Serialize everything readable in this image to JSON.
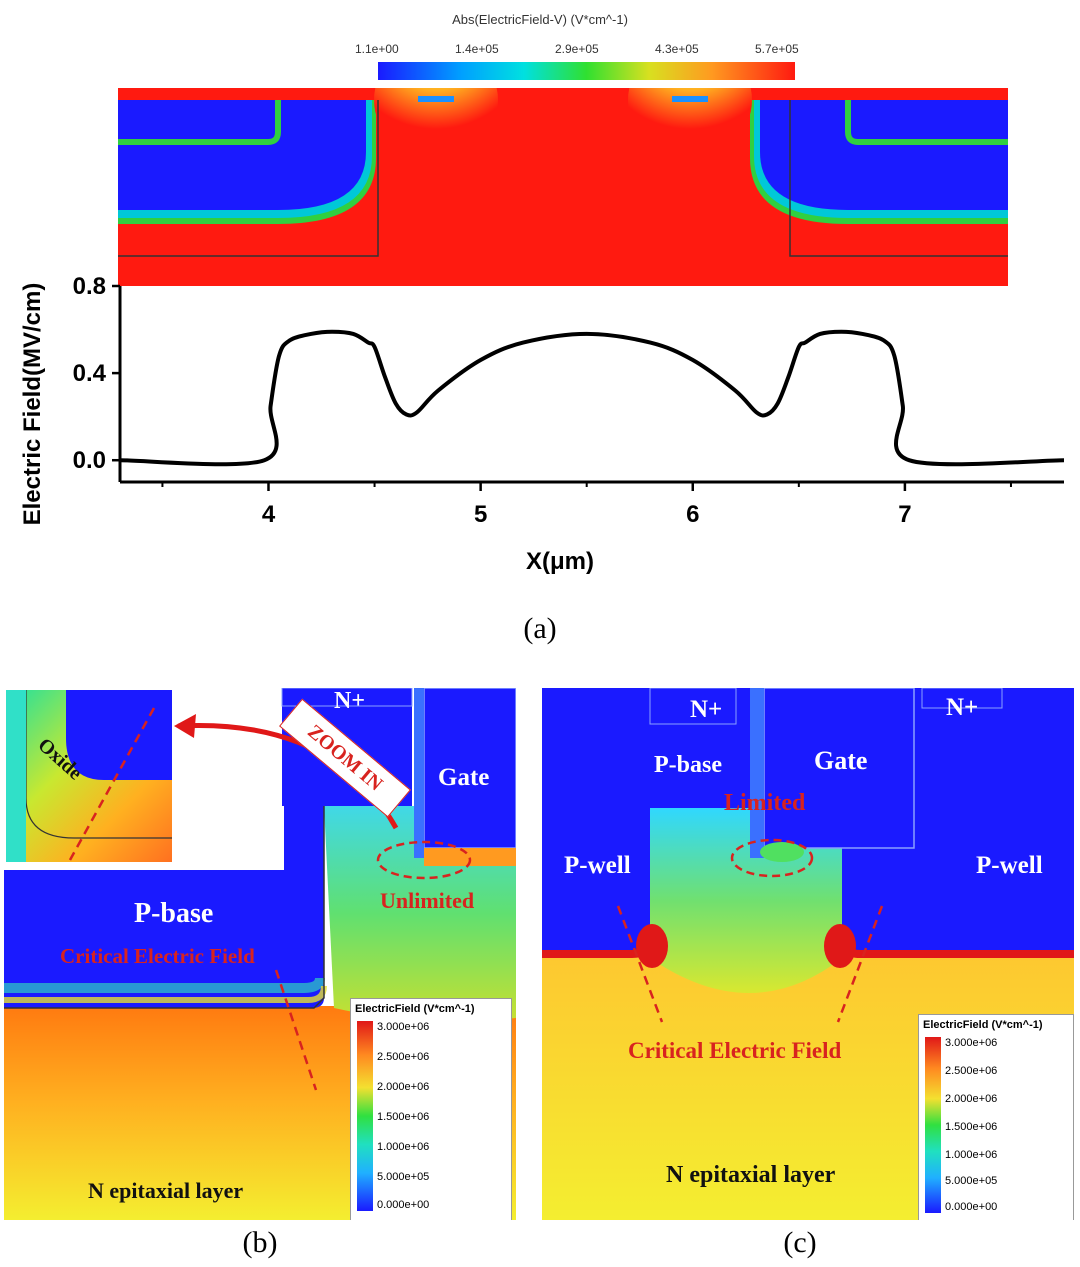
{
  "panel_a": {
    "colorbar_title": "Abs(ElectricField-V) (V*cm^-1)",
    "colorbar_ticks": [
      "1.1e+00",
      "1.4e+05",
      "2.9e+05",
      "4.3e+05",
      "5.7e+05"
    ],
    "caption": "(a)"
  },
  "panel_b": {
    "labels": {
      "n_plus": "N+",
      "gate": "Gate",
      "p_base": "P-base",
      "oxide": "Oxide",
      "zoom_in": "ZOOM IN",
      "unlimited": "Unlimited",
      "critical": "Critical Electric Field",
      "n_epi": "N epitaxial layer"
    },
    "legend_title": "ElectricField (V*cm^-1)",
    "legend_ticks": [
      "3.000e+06",
      "2.500e+06",
      "2.000e+06",
      "1.500e+06",
      "1.000e+06",
      "5.000e+05",
      "0.000e+00"
    ],
    "caption": "(b)"
  },
  "panel_c": {
    "labels": {
      "n_plus_left": "N+",
      "n_plus_right": "N+",
      "p_base": "P-base",
      "gate": "Gate",
      "limited": "Limited",
      "p_well_left": "P-well",
      "p_well_right": "P-well",
      "critical": "Critical Electric Field",
      "n_epi": "N epitaxial layer"
    },
    "legend_title": "ElectricField (V*cm^-1)",
    "legend_ticks": [
      "3.000e+06",
      "2.500e+06",
      "2.000e+06",
      "1.500e+06",
      "1.000e+06",
      "5.000e+05",
      "0.000e+00"
    ],
    "caption": "(c)"
  },
  "chart_data": {
    "type": "line",
    "title": "",
    "xlabel": "X(μm)",
    "ylabel": "Electric Field(MV/cm)",
    "xlim": [
      3.3,
      7.75
    ],
    "ylim": [
      -0.1,
      0.8
    ],
    "x_ticks": [
      "4",
      "5",
      "6",
      "7"
    ],
    "y_ticks": [
      "0.0",
      "0.4",
      "0.8"
    ],
    "x": [
      3.3,
      3.98,
      4.01,
      4.05,
      4.1,
      4.2,
      4.3,
      4.4,
      4.47,
      4.5,
      4.55,
      4.6,
      4.65,
      4.7,
      4.8,
      5.0,
      5.2,
      5.5,
      5.8,
      6.0,
      6.2,
      6.3,
      6.35,
      6.4,
      6.45,
      6.5,
      6.53,
      6.6,
      6.7,
      6.8,
      6.9,
      6.95,
      6.99,
      7.02,
      7.75
    ],
    "y": [
      0.0,
      0.0,
      0.25,
      0.48,
      0.55,
      0.58,
      0.59,
      0.58,
      0.54,
      0.52,
      0.38,
      0.26,
      0.21,
      0.22,
      0.32,
      0.46,
      0.54,
      0.58,
      0.54,
      0.46,
      0.32,
      0.22,
      0.21,
      0.26,
      0.38,
      0.52,
      0.54,
      0.58,
      0.59,
      0.58,
      0.55,
      0.48,
      0.25,
      0.0,
      0.0
    ]
  }
}
